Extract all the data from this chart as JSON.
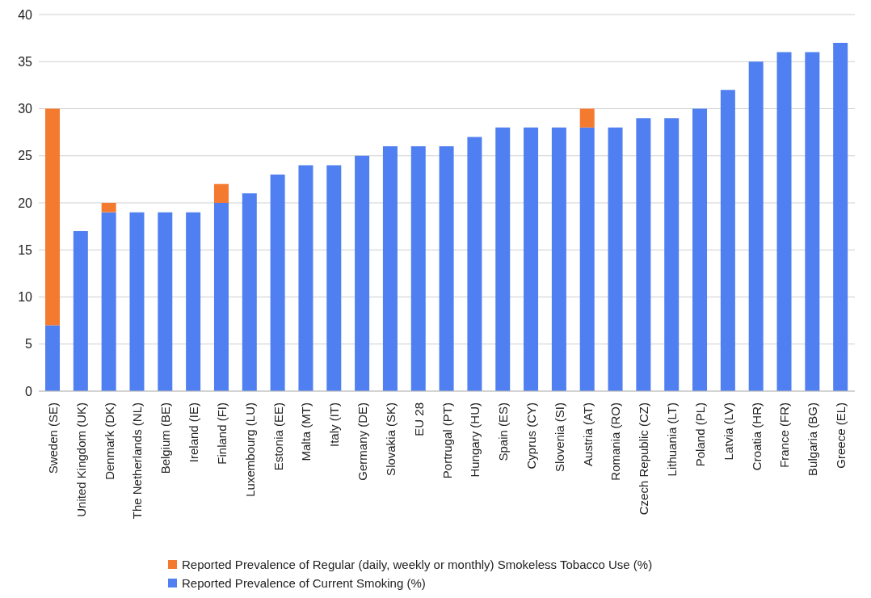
{
  "chart_data": {
    "type": "bar",
    "stacked": true,
    "categories": [
      "Sweden (SE)",
      "United Kingdom (UK)",
      "Denmark (DK)",
      "The Netherlands (NL)",
      "Belgium (BE)",
      "Ireland (IE)",
      "Finland (FI)",
      "Luxembourg (LU)",
      "Estonia (EE)",
      "Malta (MT)",
      "Italy (IT)",
      "Germany (DE)",
      "Slovakia (SK)",
      "EU 28",
      "Portrugal (PT)",
      "Hungary (HU)",
      "Spain (ES)",
      "Cyprus (CY)",
      "Slovenia (SI)",
      "Austria (AT)",
      "Romania (RO)",
      "Czech Republic (CZ)",
      "Lithuania (LT)",
      "Poland (PL)",
      "Latvia (LV)",
      "Croatia (HR)",
      "France (FR)",
      "Bulgaria (BG)",
      "Greece (EL)"
    ],
    "series": [
      {
        "name": "Reported Prevalence of Current Smoking (%)",
        "color": "#4f7ff0",
        "values": [
          7,
          17,
          19,
          19,
          19,
          19,
          20,
          21,
          23,
          24,
          24,
          25,
          26,
          26,
          26,
          27,
          28,
          28,
          28,
          28,
          28,
          29,
          29,
          30,
          32,
          35,
          36,
          36,
          37
        ]
      },
      {
        "name": "Reported Prevalence of Regular (daily, weekly or monthly) Smokeless Tobacco Use (%)",
        "color": "#f47a30",
        "values": [
          23,
          null,
          1,
          null,
          null,
          null,
          2,
          null,
          null,
          null,
          null,
          null,
          null,
          null,
          null,
          null,
          null,
          null,
          null,
          2,
          null,
          null,
          null,
          null,
          null,
          null,
          null,
          null,
          null
        ]
      }
    ],
    "ylim": [
      0,
      40
    ],
    "yticks": [
      0,
      5,
      10,
      15,
      20,
      25,
      30,
      35,
      40
    ],
    "grid": "y",
    "legend": "bottom"
  }
}
